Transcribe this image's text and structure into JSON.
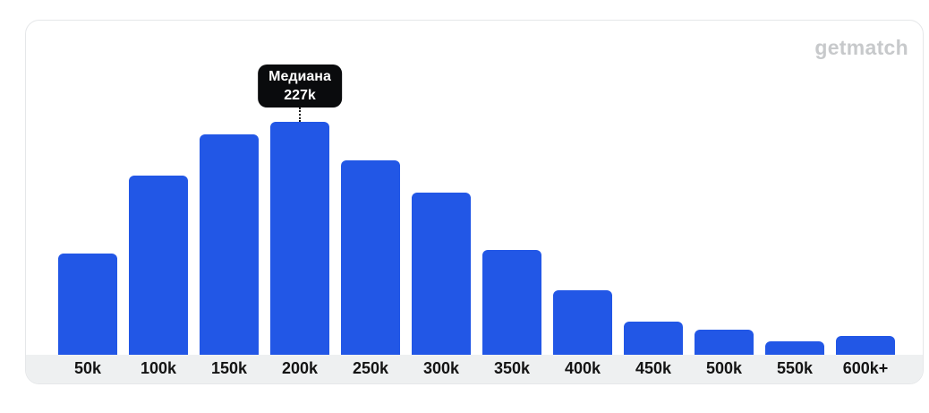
{
  "logo": {
    "text": "getmatch",
    "color": "#c7c9cb"
  },
  "tooltip": {
    "title": "Медиана",
    "value": "227k",
    "target_category": "200k",
    "bg": "#0a0b0d",
    "text_color": "#ffffff"
  },
  "chart_data": {
    "type": "bar",
    "title": "",
    "xlabel": "",
    "ylabel": "",
    "legend": false,
    "grid": false,
    "categories": [
      "50k",
      "100k",
      "150k",
      "200k",
      "250k",
      "300k",
      "350k",
      "400k",
      "450k",
      "500k",
      "550k",
      "600k+"
    ],
    "values": [
      43.5,
      76.9,
      94.6,
      100,
      83.5,
      69.6,
      45.0,
      27.7,
      14.4,
      10.8,
      5.8,
      8.1
    ],
    "ylim": [
      0,
      100
    ],
    "bar_color": "#2257e6",
    "axis_strip_color": "#eef0f1",
    "label_color": "#141414",
    "annotations": [
      {
        "text": "Медиана",
        "value": "227k",
        "category": "200k"
      }
    ]
  }
}
